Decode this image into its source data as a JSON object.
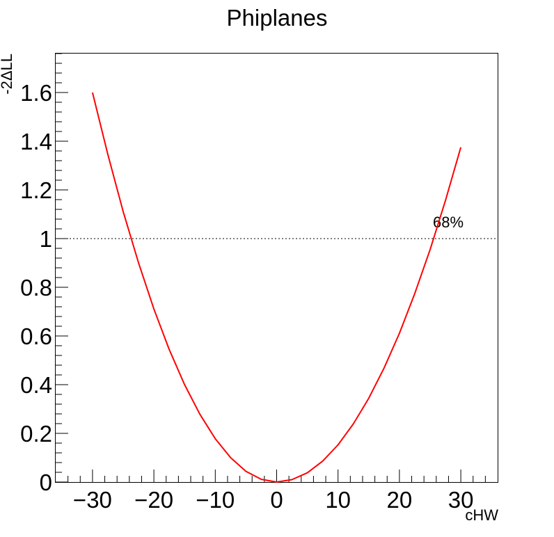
{
  "chart_data": {
    "type": "line",
    "title": "Phiplanes",
    "xlabel": "cHW",
    "ylabel": "-2ΔLL",
    "xlim": [
      -36,
      36
    ],
    "ylim": [
      0,
      1.76
    ],
    "x_ticks": [
      -30,
      -20,
      -10,
      0,
      10,
      20,
      30
    ],
    "x_tick_labels": [
      "−30",
      "−20",
      "−10",
      "0",
      "10",
      "20",
      "30"
    ],
    "y_ticks": [
      0,
      0.2,
      0.4,
      0.6,
      0.8,
      1,
      1.2,
      1.4,
      1.6
    ],
    "y_tick_labels": [
      "0",
      "0.2",
      "0.4",
      "0.6",
      "0.8",
      "1",
      "1.2",
      "1.4",
      "1.6"
    ],
    "grid": false,
    "series": [
      {
        "color": "#ff0000",
        "x": [
          -30,
          -27.5,
          -25,
          -22.5,
          -20,
          -17.5,
          -15,
          -12.5,
          -10,
          -7.5,
          -5,
          -2.5,
          0,
          2.5,
          5,
          7.5,
          10,
          12.5,
          15,
          17.5,
          20,
          22.5,
          25,
          27.5,
          30
        ],
        "y": [
          1.6,
          1.345,
          1.111,
          0.9,
          0.711,
          0.544,
          0.4,
          0.278,
          0.178,
          0.1,
          0.044,
          0.011,
          0.0,
          0.01,
          0.038,
          0.086,
          0.153,
          0.239,
          0.344,
          0.468,
          0.611,
          0.774,
          0.955,
          1.156,
          1.375
        ]
      }
    ],
    "reference_line": {
      "y": 1,
      "label": "68%",
      "style": "dotted",
      "color": "#555555"
    }
  }
}
